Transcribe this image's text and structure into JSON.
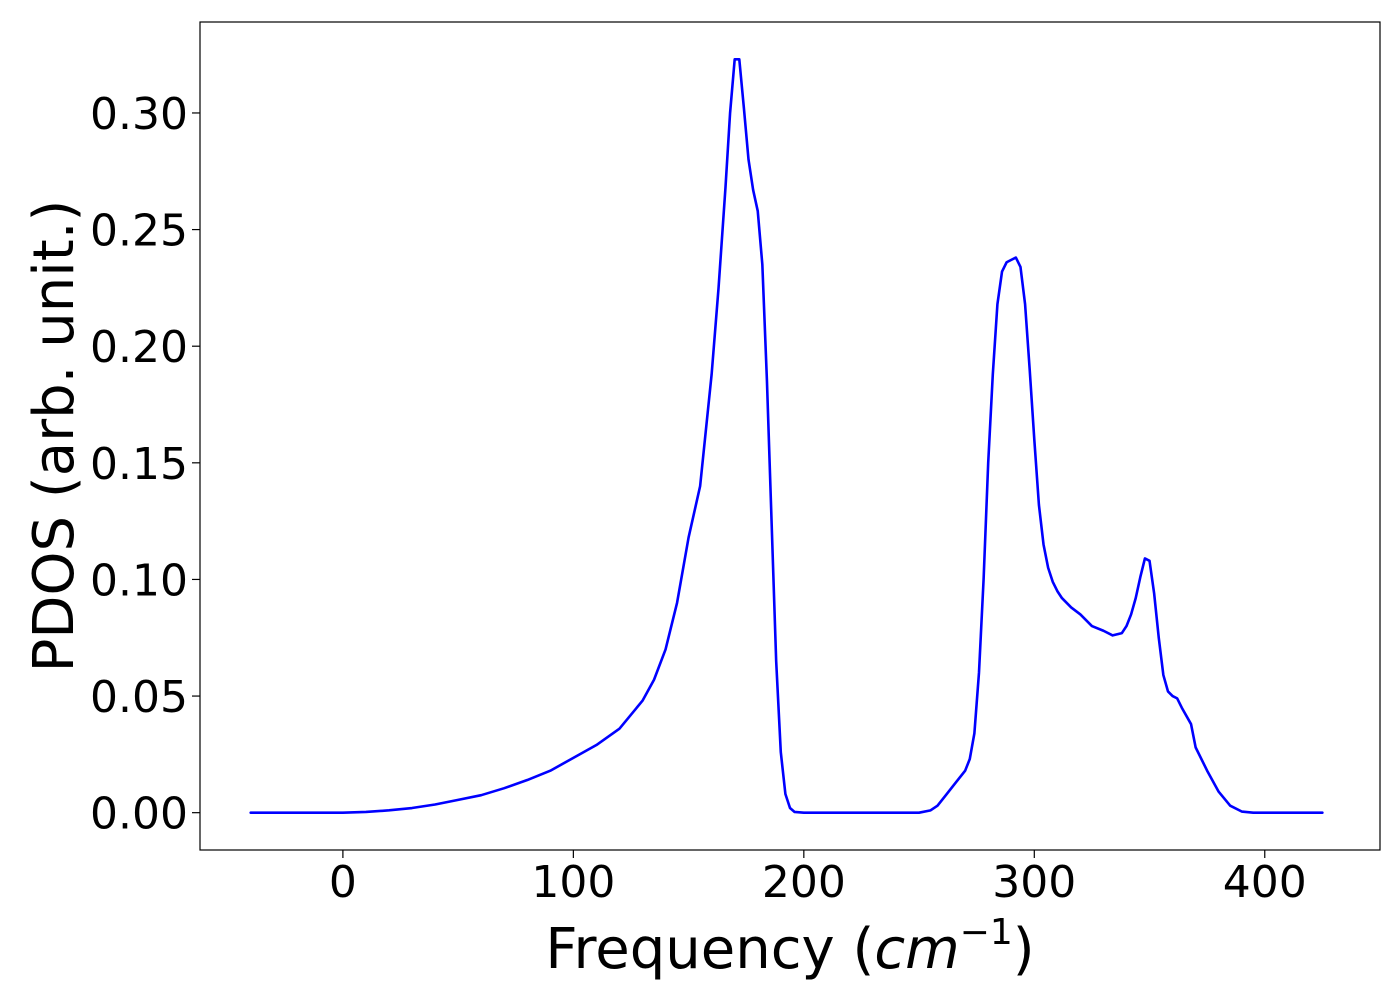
{
  "chart_data": {
    "type": "line",
    "title": "",
    "xlabel": {
      "prefix": "Frequency (",
      "italic": "cm",
      "superscript": "−1",
      "suffix": ")"
    },
    "ylabel": "PDOS (arb. unit.)",
    "xlim": [
      -62,
      450
    ],
    "ylim": [
      -0.016,
      0.339
    ],
    "xticks": [
      {
        "value": 0,
        "label": "0"
      },
      {
        "value": 100,
        "label": "100"
      },
      {
        "value": 200,
        "label": "200"
      },
      {
        "value": 300,
        "label": "300"
      },
      {
        "value": 400,
        "label": "400"
      }
    ],
    "yticks": [
      {
        "value": 0.0,
        "label": "0.00"
      },
      {
        "value": 0.05,
        "label": "0.05"
      },
      {
        "value": 0.1,
        "label": "0.10"
      },
      {
        "value": 0.15,
        "label": "0.15"
      },
      {
        "value": 0.2,
        "label": "0.20"
      },
      {
        "value": 0.25,
        "label": "0.25"
      },
      {
        "value": 0.3,
        "label": "0.30"
      }
    ],
    "grid": false,
    "legend": "none",
    "series": [
      {
        "color": "#0000ff",
        "x": [
          -40,
          0,
          10,
          20,
          30,
          40,
          50,
          60,
          70,
          80,
          90,
          100,
          110,
          120,
          130,
          135,
          140,
          145,
          150,
          155,
          160,
          163,
          166,
          168,
          170,
          172,
          174,
          176,
          178,
          180,
          182,
          184,
          186,
          188,
          190,
          192,
          194,
          196,
          200,
          210,
          220,
          230,
          240,
          250,
          255,
          258,
          262,
          266,
          270,
          272,
          274,
          276,
          278,
          280,
          282,
          284,
          286,
          288,
          290,
          292,
          294,
          296,
          298,
          300,
          302,
          304,
          306,
          308,
          310,
          312,
          316,
          320,
          325,
          330,
          334,
          338,
          340,
          342,
          344,
          346,
          348,
          350,
          352,
          354,
          356,
          358,
          360,
          362,
          364,
          368,
          370,
          375,
          380,
          385,
          390,
          395,
          400,
          410,
          425
        ],
        "y": [
          0,
          0,
          0.0003,
          0.001,
          0.002,
          0.0035,
          0.0055,
          0.0075,
          0.0105,
          0.014,
          0.018,
          0.0235,
          0.029,
          0.036,
          0.048,
          0.057,
          0.07,
          0.09,
          0.118,
          0.14,
          0.188,
          0.225,
          0.268,
          0.3,
          0.323,
          0.323,
          0.302,
          0.28,
          0.267,
          0.258,
          0.235,
          0.185,
          0.125,
          0.065,
          0.026,
          0.008,
          0.002,
          0.0003,
          0,
          0,
          0,
          0,
          0,
          0,
          0.001,
          0.003,
          0.008,
          0.013,
          0.018,
          0.023,
          0.034,
          0.06,
          0.1,
          0.15,
          0.188,
          0.218,
          0.232,
          0.236,
          0.237,
          0.238,
          0.234,
          0.218,
          0.19,
          0.16,
          0.132,
          0.115,
          0.105,
          0.099,
          0.095,
          0.092,
          0.088,
          0.085,
          0.08,
          0.078,
          0.076,
          0.077,
          0.08,
          0.085,
          0.092,
          0.101,
          0.109,
          0.108,
          0.094,
          0.075,
          0.059,
          0.052,
          0.05,
          0.049,
          0.045,
          0.038,
          0.028,
          0.018,
          0.009,
          0.003,
          0.0005,
          0,
          0,
          0,
          0
        ]
      }
    ]
  }
}
